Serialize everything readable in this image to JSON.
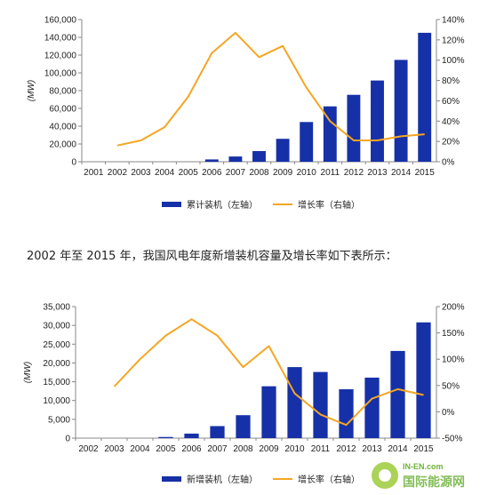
{
  "caption": "2002 年至 2015 年，我国风电年度新增装机容量及增长率如下表所示：",
  "watermark": {
    "brand_small": "IN-EN.com",
    "brand_cn": "国际能源网"
  },
  "colors": {
    "bar": "#1630a8",
    "line": "#f5a623",
    "axis": "#888888"
  },
  "chart_data": [
    {
      "type": "bar+line",
      "categories": [
        "2001",
        "2002",
        "2003",
        "2004",
        "2005",
        "2006",
        "2007",
        "2008",
        "2009",
        "2010",
        "2011",
        "2012",
        "2013",
        "2014",
        "2015"
      ],
      "ylabel": "(MW)",
      "ylim": [
        0,
        160000
      ],
      "y_ticks": [
        "0",
        "20,000",
        "40,000",
        "60,000",
        "80,000",
        "100,000",
        "120,000",
        "140,000",
        "160,000"
      ],
      "y2lim": [
        0,
        140
      ],
      "y2_ticks": [
        "0%",
        "20%",
        "40%",
        "60%",
        "80%",
        "100%",
        "120%",
        "140%"
      ],
      "series": [
        {
          "name": "累计装机（左轴）",
          "axis": "left",
          "kind": "bar",
          "values": [
            0,
            0,
            0,
            0,
            0,
            2600,
            5900,
            12000,
            25800,
            44700,
            62300,
            75300,
            91400,
            114600,
            145100
          ]
        },
        {
          "name": "增长率（右轴）",
          "axis": "right",
          "kind": "line",
          "values": [
            null,
            16,
            21,
            34,
            64,
            107,
            127,
            103,
            114,
            73,
            40,
            21,
            21,
            25,
            27
          ]
        }
      ],
      "legend": "bottom"
    },
    {
      "type": "bar+line",
      "categories": [
        "2002",
        "2003",
        "2004",
        "2005",
        "2006",
        "2007",
        "2008",
        "2009",
        "2010",
        "2011",
        "2012",
        "2013",
        "2014",
        "2015"
      ],
      "ylabel": "(MW)",
      "ylim": [
        0,
        35000
      ],
      "y_ticks": [
        "0",
        "5,000",
        "10,000",
        "15,000",
        "20,000",
        "25,000",
        "30,000",
        "35,000"
      ],
      "y2lim": [
        -50,
        200
      ],
      "y2_ticks": [
        "-50%",
        "0%",
        "50%",
        "100%",
        "150%",
        "200%"
      ],
      "series": [
        {
          "name": "新增装机（左轴）",
          "axis": "left",
          "kind": "bar",
          "values": [
            0,
            0,
            0,
            300,
            1200,
            3200,
            6100,
            13800,
            18900,
            17600,
            13000,
            16100,
            23200,
            30800
          ]
        },
        {
          "name": "增长率（右轴）",
          "axis": "right",
          "kind": "line",
          "values": [
            null,
            48,
            100,
            145,
            176,
            145,
            85,
            125,
            35,
            -5,
            -25,
            25,
            43,
            32
          ]
        }
      ],
      "legend": "bottom"
    }
  ]
}
